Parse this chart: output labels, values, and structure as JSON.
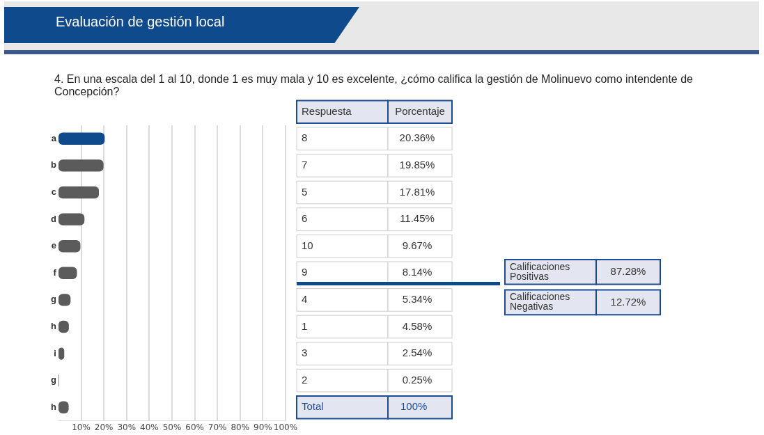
{
  "chart_data": {
    "type": "bar",
    "orientation": "horizontal",
    "title": "Evaluación de gestión local",
    "subtitle": "4. En una escala del 1 al 10, donde 1 es muy mala y 10 es excelente, ¿cómo califica la gestión de Molinuevo como intendente de Concepción?",
    "categories": [
      "a",
      "b",
      "c",
      "d",
      "e",
      "f",
      "g",
      "h",
      "i",
      "g",
      "h"
    ],
    "y2_categories": [
      "8",
      "7",
      "5",
      "6",
      "10",
      "9",
      "4",
      "1",
      "3",
      "2",
      "Total"
    ],
    "values": [
      20.36,
      19.85,
      17.81,
      11.45,
      9.67,
      8.14,
      5.34,
      4.58,
      2.54,
      0.25,
      4.5
    ],
    "value_labels": [
      "20.36%",
      "19.85%",
      "17.81%",
      "11.45%",
      "9.67%",
      "8.14%",
      "5.34%",
      "4.58%",
      "2.54%",
      "0.25%",
      null
    ],
    "colors": [
      "#0e4a8c",
      "#5b5b5b",
      "#5b5b5b",
      "#5b5b5b",
      "#5b5b5b",
      "#5b5b5b",
      "#5b5b5b",
      "#5b5b5b",
      "#5b5b5b",
      "#5b5b5b",
      "#5b5b5b"
    ],
    "xlim": [
      0,
      100
    ],
    "xticks": [
      {
        "value": 10,
        "label": "10%"
      },
      {
        "value": 20,
        "label": "20%"
      },
      {
        "value": 30,
        "label": "30%"
      },
      {
        "value": 40,
        "label": "40%"
      },
      {
        "value": 50,
        "label": "50%"
      },
      {
        "value": 60,
        "label": "60%"
      },
      {
        "value": 70,
        "label": "70%"
      },
      {
        "value": 80,
        "label": "80%"
      },
      {
        "value": 90,
        "label": "90%"
      },
      {
        "value": 100,
        "label": "100%"
      }
    ],
    "grid": "x",
    "legend": false,
    "annotations": [
      "Respuesta",
      "Porcentaje",
      "100%",
      "Calificaciones Positivas",
      "87.28%",
      "Calificaciones Negativas",
      "12.72%"
    ]
  }
}
